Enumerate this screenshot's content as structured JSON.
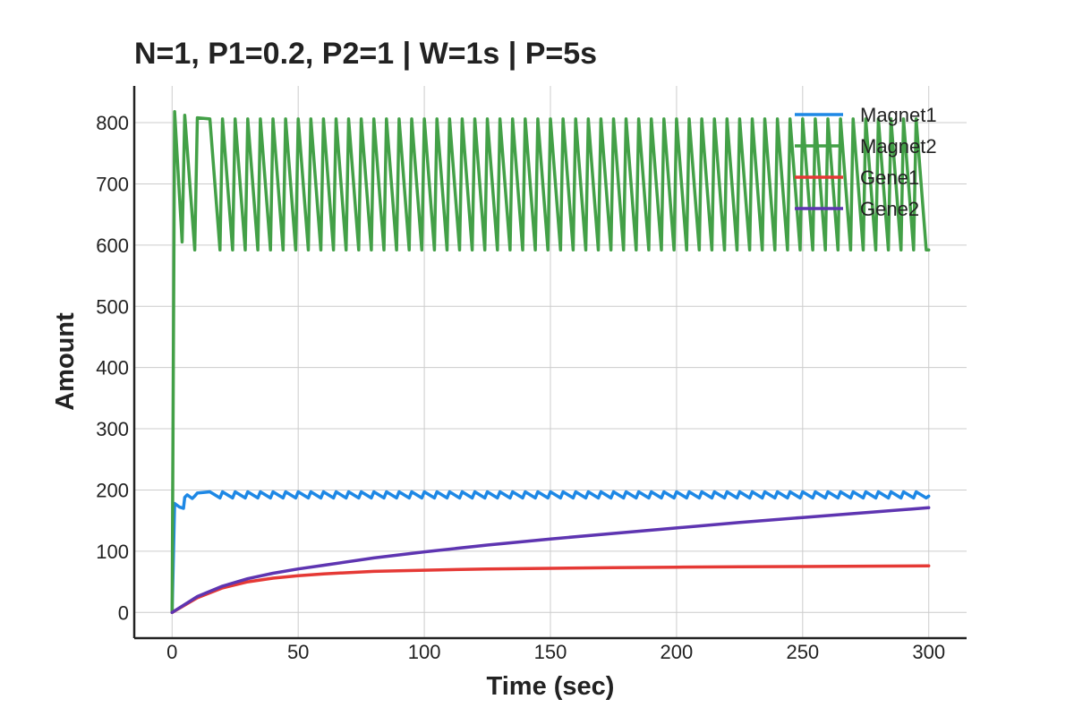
{
  "chart_data": {
    "type": "line",
    "title": "N=1, P1=0.2, P2=1 | W=1s | P=5s",
    "xlabel": "Time (sec)",
    "ylabel": "Amount",
    "xlim": [
      -15,
      315
    ],
    "ylim": [
      -42,
      860
    ],
    "xticks": [
      0,
      50,
      100,
      150,
      200,
      250,
      300
    ],
    "yticks": [
      0,
      100,
      200,
      300,
      400,
      500,
      600,
      700,
      800
    ],
    "grid": true,
    "legend_position": "top-right",
    "series": [
      {
        "name": "Magnet1",
        "color": "#1e88e5",
        "x": [
          0,
          1,
          3,
          4.5,
          5,
          6,
          8,
          9,
          10,
          300
        ],
        "y": [
          0,
          178,
          172,
          170,
          188,
          192,
          186,
          190,
          195,
          190
        ],
        "pattern": "sawtooth",
        "period": 5,
        "high": 197,
        "low": 187
      },
      {
        "name": "Magnet2",
        "color": "#43a047",
        "x": [
          0,
          1,
          4,
          5,
          9,
          10,
          300
        ],
        "y": [
          0,
          818,
          605,
          812,
          592,
          808,
          592
        ],
        "pattern": "sawtooth",
        "period": 5,
        "high": 806,
        "low": 592
      },
      {
        "name": "Gene1",
        "color": "#e53935",
        "x": [
          0,
          10,
          20,
          30,
          40,
          50,
          60,
          80,
          100,
          125,
          150,
          175,
          200,
          225,
          250,
          275,
          300
        ],
        "y": [
          0,
          24,
          40,
          50,
          56,
          60,
          63,
          67,
          69,
          71,
          72,
          73,
          74,
          74.5,
          75,
          75.5,
          76
        ]
      },
      {
        "name": "Gene2",
        "color": "#5e35b1",
        "x": [
          0,
          10,
          20,
          30,
          40,
          50,
          60,
          80,
          100,
          125,
          150,
          175,
          200,
          225,
          250,
          275,
          300
        ],
        "y": [
          0,
          26,
          43,
          55,
          64,
          71,
          77,
          89,
          99,
          110,
          120,
          129,
          138,
          147,
          155,
          163,
          171
        ]
      }
    ]
  }
}
